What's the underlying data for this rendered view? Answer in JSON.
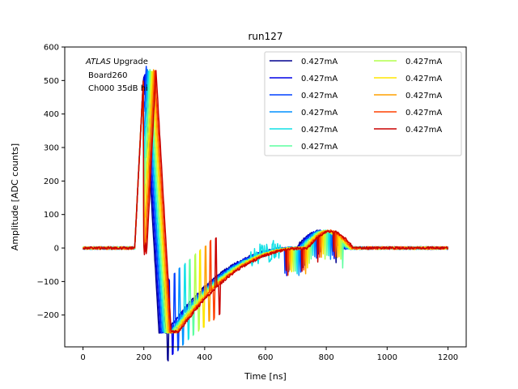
{
  "chart_data": {
    "type": "line",
    "title": "run127",
    "xlabel": "Time [ns]",
    "ylabel": "Amplitude [ADC counts]",
    "xlim": [
      -60,
      1260
    ],
    "ylim": [
      -295,
      600
    ],
    "xticks": [
      0,
      200,
      400,
      600,
      800,
      1000,
      1200
    ],
    "yticks": [
      -200,
      -100,
      0,
      100,
      200,
      300,
      400,
      500,
      600
    ],
    "grid": false,
    "legend_position": "top-right",
    "legend_columns": 2,
    "annotation": {
      "line1_italic": "ATLAS",
      "line1_rest": " Upgrade",
      "line2": "Board260",
      "line3": "Ch000 35dB hi"
    },
    "series": [
      {
        "name": "0.427mA",
        "color": "#00008f",
        "shift": 0
      },
      {
        "name": "0.427mA",
        "color": "#0000e6",
        "shift": 4
      },
      {
        "name": "0.427mA",
        "color": "#0040ff",
        "shift": 8
      },
      {
        "name": "0.427mA",
        "color": "#0090ff",
        "shift": 12
      },
      {
        "name": "0.427mA",
        "color": "#10e0e6",
        "shift": 16
      },
      {
        "name": "0.427mA",
        "color": "#5cff9f",
        "shift": 20
      },
      {
        "name": "0.427mA",
        "color": "#b2ff4c",
        "shift": 24
      },
      {
        "name": "0.427mA",
        "color": "#ffe600",
        "shift": 28
      },
      {
        "name": "0.427mA",
        "color": "#ffa000",
        "shift": 32
      },
      {
        "name": "0.427mA",
        "color": "#ff4000",
        "shift": 36
      },
      {
        "name": "0.427mA",
        "color": "#c80000",
        "shift": 40
      }
    ]
  }
}
